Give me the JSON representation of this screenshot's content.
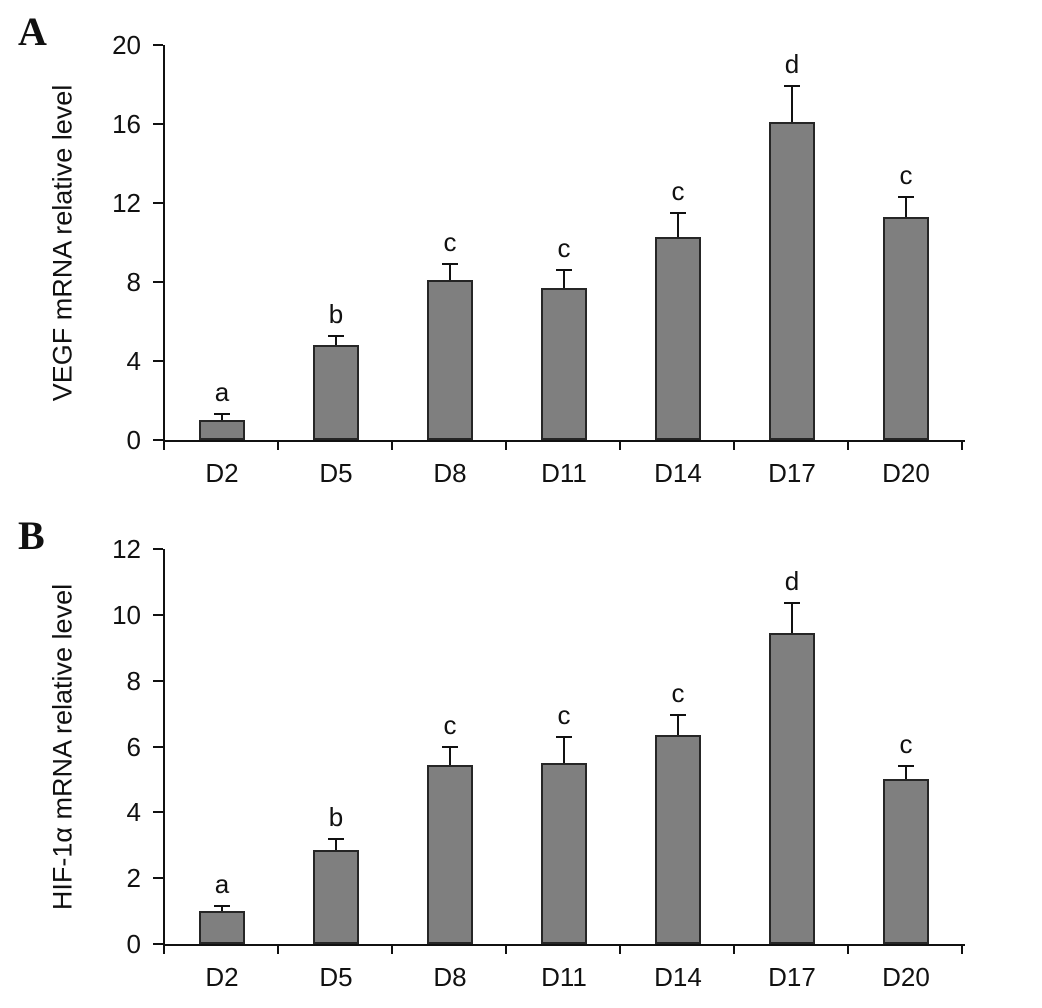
{
  "colors": {
    "bar_fill": "#7f7f7f",
    "bar_border": "#262626",
    "axis": "#111111",
    "background": "#ffffff"
  },
  "chart_data": [
    {
      "type": "bar",
      "panel_label": "A",
      "title": "",
      "xlabel": "",
      "ylabel": "VEGF mRNA relative level",
      "categories": [
        "D2",
        "D5",
        "D8",
        "D11",
        "D14",
        "D17",
        "D20"
      ],
      "values": [
        1.0,
        4.8,
        8.1,
        7.7,
        10.3,
        16.1,
        11.3
      ],
      "errors": [
        0.3,
        0.45,
        0.8,
        0.9,
        1.2,
        1.8,
        1.0
      ],
      "sig_labels": [
        "a",
        "b",
        "c",
        "c",
        "c",
        "d",
        "c"
      ],
      "ylim": [
        0,
        20
      ],
      "yticks": [
        0,
        4,
        8,
        12,
        16,
        20
      ],
      "grid": false,
      "legend": "none",
      "error_bars": "upper"
    },
    {
      "type": "bar",
      "panel_label": "B",
      "title": "",
      "xlabel": "",
      "ylabel": "HIF-1α mRNA relative level",
      "categories": [
        "D2",
        "D5",
        "D8",
        "D11",
        "D14",
        "D17",
        "D20"
      ],
      "values": [
        1.0,
        2.85,
        5.45,
        5.5,
        6.35,
        9.45,
        5.0
      ],
      "errors": [
        0.15,
        0.35,
        0.55,
        0.8,
        0.6,
        0.9,
        0.4
      ],
      "sig_labels": [
        "a",
        "b",
        "c",
        "c",
        "c",
        "d",
        "c"
      ],
      "ylim": [
        0,
        12
      ],
      "yticks": [
        0,
        2,
        4,
        6,
        8,
        10,
        12
      ],
      "grid": false,
      "legend": "none",
      "error_bars": "upper"
    }
  ]
}
